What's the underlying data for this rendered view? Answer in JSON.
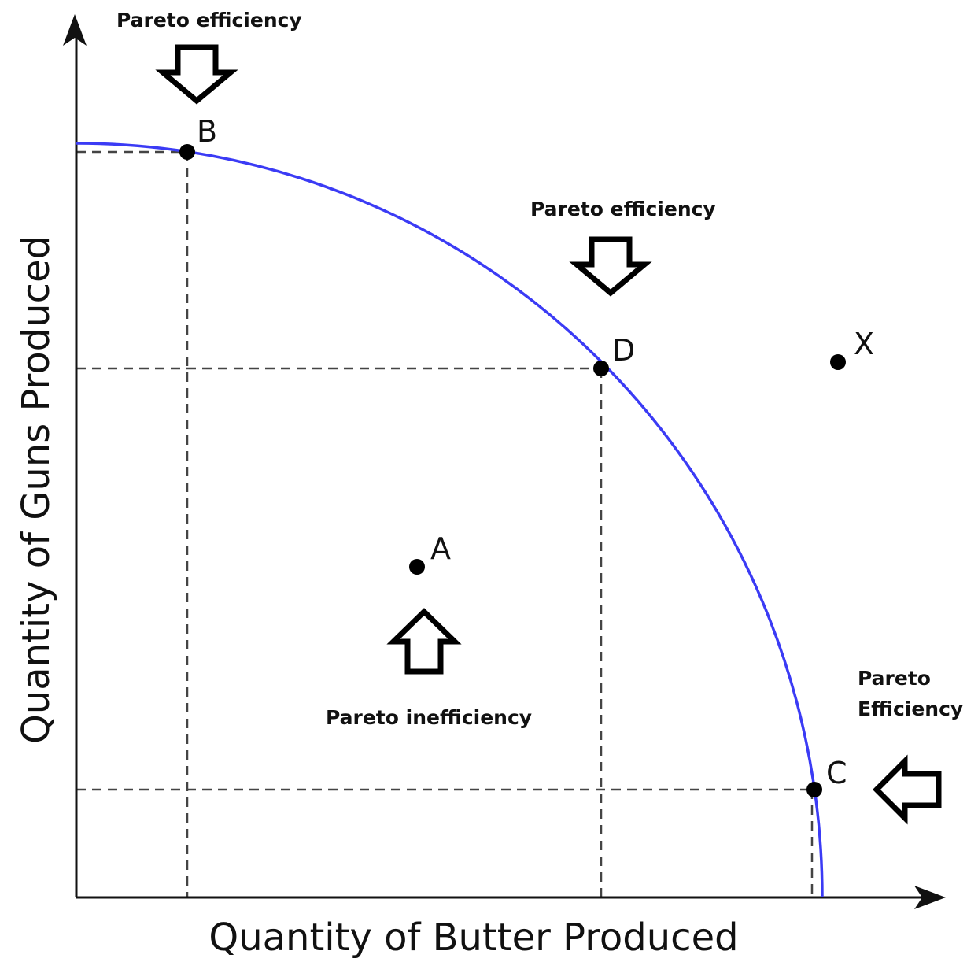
{
  "axes": {
    "x_label": "Quantity of Butter Produced",
    "y_label": "Quantity of Guns Produced"
  },
  "points": [
    {
      "label": "B"
    },
    {
      "label": "D"
    },
    {
      "label": "C"
    },
    {
      "label": "A"
    },
    {
      "label": "X"
    }
  ],
  "annotations": [
    {
      "text": "Pareto efficiency"
    },
    {
      "text": "Pareto efficiency"
    },
    {
      "text": "Pareto inefficiency"
    },
    {
      "lines": [
        "Pareto",
        "Efficiency"
      ]
    }
  ]
}
